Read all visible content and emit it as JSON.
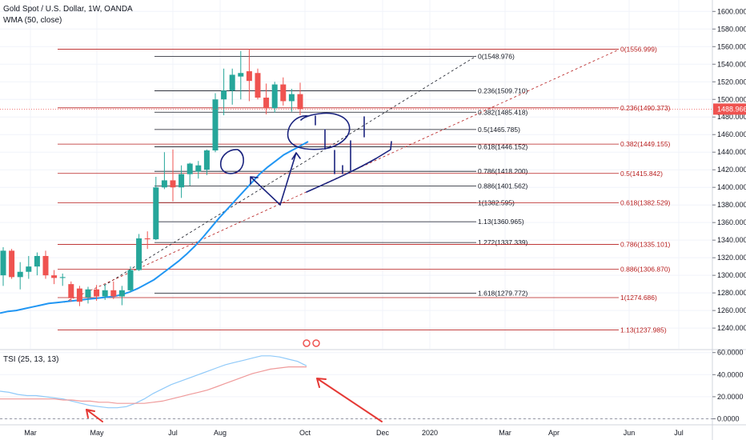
{
  "header": {
    "symbol": "Gold Spot / U.S. Dollar, 1W, OANDA",
    "indicator": "WMA (50, close)"
  },
  "tsi_legend": "TSI (25, 13, 13)",
  "colors": {
    "bull": "#26a69a",
    "bear": "#ef5350",
    "wma": "#2196f3",
    "fib_black": "#131722",
    "fib_red": "#b71c1c",
    "drawing": "#1a237e",
    "arrow_red": "#e53935",
    "price_tag": "#ef5350",
    "tsi_blue": "#90caf9",
    "tsi_red": "#ef9a9a"
  },
  "current_price": "1488.966",
  "chart_data": [
    {
      "type": "candlestick",
      "title": "Gold Spot / U.S. Dollar, 1W, OANDA",
      "x_ticks": [
        "Mar",
        "May",
        "Jul",
        "Aug",
        "Oct",
        "Dec",
        "2020",
        "Mar",
        "Apr",
        "Jun",
        "Jul"
      ],
      "y_ticks": [
        "1600.000",
        "1580.000",
        "1560.000",
        "1540.000",
        "1520.000",
        "1500.000",
        "1480.000",
        "1460.000",
        "1440.000",
        "1420.000",
        "1400.000",
        "1380.000",
        "1360.000",
        "1340.000",
        "1320.000",
        "1300.000",
        "1280.000",
        "1260.000",
        "1240.000"
      ],
      "ylim": [
        1232,
        1610
      ],
      "candles": [
        {
          "o": 1300,
          "h": 1332,
          "l": 1288,
          "c": 1328
        },
        {
          "o": 1328,
          "h": 1330,
          "l": 1296,
          "c": 1298
        },
        {
          "o": 1298,
          "h": 1315,
          "l": 1284,
          "c": 1304
        },
        {
          "o": 1304,
          "h": 1322,
          "l": 1296,
          "c": 1310
        },
        {
          "o": 1310,
          "h": 1326,
          "l": 1300,
          "c": 1322
        },
        {
          "o": 1322,
          "h": 1328,
          "l": 1296,
          "c": 1300
        },
        {
          "o": 1300,
          "h": 1306,
          "l": 1290,
          "c": 1297
        },
        {
          "o": 1297,
          "h": 1302,
          "l": 1288,
          "c": 1298
        },
        {
          "o": 1290,
          "h": 1293,
          "l": 1270,
          "c": 1274
        },
        {
          "o": 1285,
          "h": 1288,
          "l": 1265,
          "c": 1270
        },
        {
          "o": 1275,
          "h": 1287,
          "l": 1268,
          "c": 1284
        },
        {
          "o": 1284,
          "h": 1289,
          "l": 1271,
          "c": 1276
        },
        {
          "o": 1276,
          "h": 1290,
          "l": 1272,
          "c": 1283
        },
        {
          "o": 1283,
          "h": 1293,
          "l": 1273,
          "c": 1276
        },
        {
          "o": 1276,
          "h": 1288,
          "l": 1266,
          "c": 1283
        },
        {
          "o": 1283,
          "h": 1310,
          "l": 1281,
          "c": 1306
        },
        {
          "o": 1306,
          "h": 1347,
          "l": 1305,
          "c": 1342
        },
        {
          "o": 1342,
          "h": 1350,
          "l": 1330,
          "c": 1341
        },
        {
          "o": 1341,
          "h": 1412,
          "l": 1340,
          "c": 1400
        },
        {
          "o": 1400,
          "h": 1440,
          "l": 1398,
          "c": 1408
        },
        {
          "o": 1408,
          "h": 1443,
          "l": 1384,
          "c": 1400
        },
        {
          "o": 1400,
          "h": 1425,
          "l": 1388,
          "c": 1415
        },
        {
          "o": 1415,
          "h": 1428,
          "l": 1402,
          "c": 1427
        },
        {
          "o": 1418,
          "h": 1430,
          "l": 1410,
          "c": 1425
        },
        {
          "o": 1420,
          "h": 1443,
          "l": 1414,
          "c": 1442
        },
        {
          "o": 1442,
          "h": 1507,
          "l": 1440,
          "c": 1500
        },
        {
          "o": 1500,
          "h": 1535,
          "l": 1482,
          "c": 1510
        },
        {
          "o": 1510,
          "h": 1535,
          "l": 1494,
          "c": 1528
        },
        {
          "o": 1526,
          "h": 1555,
          "l": 1500,
          "c": 1530
        },
        {
          "o": 1532,
          "h": 1557,
          "l": 1498,
          "c": 1521
        },
        {
          "o": 1530,
          "h": 1535,
          "l": 1500,
          "c": 1502
        },
        {
          "o": 1502,
          "h": 1518,
          "l": 1483,
          "c": 1490
        },
        {
          "o": 1490,
          "h": 1520,
          "l": 1485,
          "c": 1517
        },
        {
          "o": 1517,
          "h": 1525,
          "l": 1493,
          "c": 1498
        },
        {
          "o": 1498,
          "h": 1512,
          "l": 1486,
          "c": 1506
        },
        {
          "o": 1506,
          "h": 1519,
          "l": 1482,
          "c": 1489
        }
      ],
      "wma": [
        1257,
        1259,
        1260,
        1262,
        1264,
        1266,
        1268,
        1269,
        1270,
        1271,
        1272,
        1273,
        1274,
        1275,
        1276,
        1278,
        1281,
        1285,
        1290,
        1295,
        1302,
        1309,
        1316,
        1324,
        1333,
        1343,
        1354,
        1365,
        1375,
        1385,
        1395,
        1405,
        1415,
        1423,
        1430,
        1437,
        1442,
        1447,
        1452
      ],
      "fib_levels": [
        {
          "label": "0(1548.976)",
          "price": 1548.976
        },
        {
          "label": "0.236(1509.710)",
          "price": 1509.71
        },
        {
          "label": "0.382(1485.418)",
          "price": 1485.418
        },
        {
          "label": "0.5(1465.785)",
          "price": 1465.785
        },
        {
          "label": "0.618(1446.152)",
          "price": 1446.152
        },
        {
          "label": "0.786(1418.200)",
          "price": 1418.2
        },
        {
          "label": "0.886(1401.562)",
          "price": 1401.562
        },
        {
          "label": "1(1382.595)",
          "price": 1382.595
        },
        {
          "label": "1.13(1360.965)",
          "price": 1360.965
        },
        {
          "label": "1.272(1337.339)",
          "price": 1337.339
        },
        {
          "label": "1.618(1279.772)",
          "price": 1279.772
        }
      ],
      "fib_levels_red": [
        {
          "label": "0(1556.999)",
          "price": 1556.999
        },
        {
          "label": "0.236(1490.373)",
          "price": 1490.373
        },
        {
          "label": "0.382(1449.155)",
          "price": 1449.155
        },
        {
          "label": "0.5(1415.842)",
          "price": 1415.842
        },
        {
          "label": "0.618(1382.529)",
          "price": 1382.529
        },
        {
          "label": "0.786(1335.101)",
          "price": 1335.101
        },
        {
          "label": "0.886(1306.870)",
          "price": 1306.87
        },
        {
          "label": "1(1274.686)",
          "price": 1274.686
        },
        {
          "label": "1.13(1237.985)",
          "price": 1237.985
        }
      ]
    },
    {
      "type": "line",
      "title": "TSI (25, 13, 13)",
      "y_ticks": [
        "60.0000",
        "40.0000",
        "20.0000",
        "0.0000"
      ],
      "ylim": [
        -5,
        62
      ],
      "series": [
        {
          "values": [
            25,
            24,
            22,
            21,
            21,
            20,
            19,
            18,
            16,
            14,
            12,
            11,
            10,
            10,
            11,
            14,
            18,
            23,
            27,
            31,
            34,
            37,
            40,
            43,
            46,
            49,
            51,
            53,
            55,
            57,
            57,
            56,
            54,
            52,
            48
          ]
        },
        {
          "values": [
            18,
            18,
            18,
            18,
            18,
            18,
            18,
            17,
            17,
            16,
            16,
            15,
            15,
            14,
            14,
            14,
            14,
            15,
            16,
            18,
            20,
            22,
            24,
            26,
            29,
            32,
            35,
            38,
            41,
            43,
            45,
            46,
            47,
            47,
            47
          ]
        }
      ]
    }
  ]
}
